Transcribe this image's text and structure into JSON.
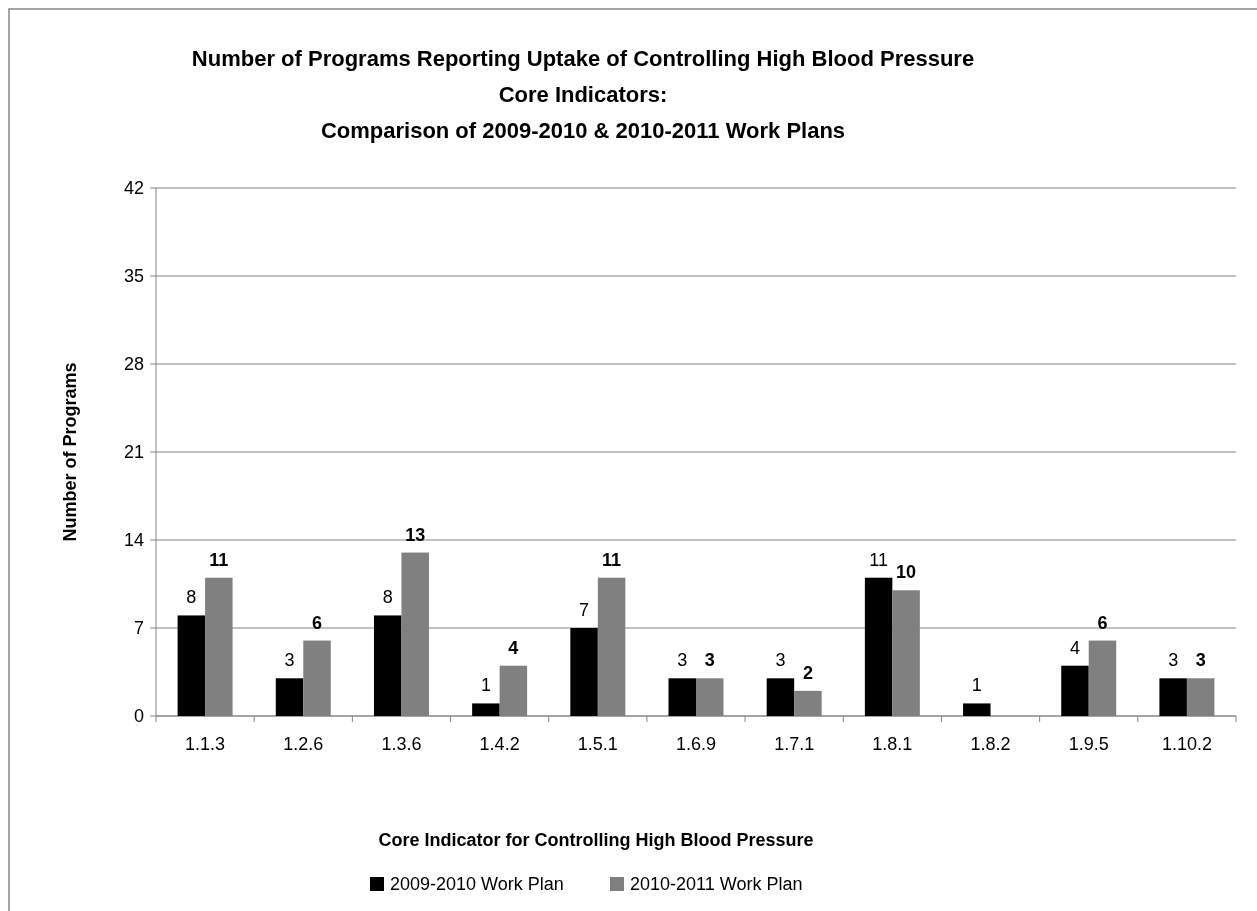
{
  "chart_data": {
    "type": "bar",
    "title": "Number of Programs Reporting Uptake of Controlling High Blood Pressure\nCore Indicators:\nComparison of 2009-2010 & 2010-2011 Work Plans",
    "xlabel": "Core Indicator for Controlling High Blood Pressure",
    "ylabel": "Number of Programs",
    "categories": [
      "1.1.3",
      "1.2.6",
      "1.3.6",
      "1.4.2",
      "1.5.1",
      "1.6.9",
      "1.7.1",
      "1.8.1",
      "1.8.2",
      "1.9.5",
      "1.10.2"
    ],
    "series": [
      {
        "name": "2009-2010 Work Plan",
        "color": "#000000",
        "values": [
          8,
          3,
          8,
          1,
          7,
          3,
          3,
          11,
          1,
          4,
          3
        ]
      },
      {
        "name": "2010-2011 Work Plan",
        "color": "#808080",
        "values": [
          11,
          6,
          13,
          4,
          11,
          3,
          2,
          10,
          null,
          6,
          3
        ]
      }
    ],
    "ylim": [
      0,
      42
    ],
    "yticks": [
      0,
      7,
      14,
      21,
      28,
      35,
      42
    ],
    "grid": "y",
    "legend": "bottom",
    "data_labels": true
  }
}
